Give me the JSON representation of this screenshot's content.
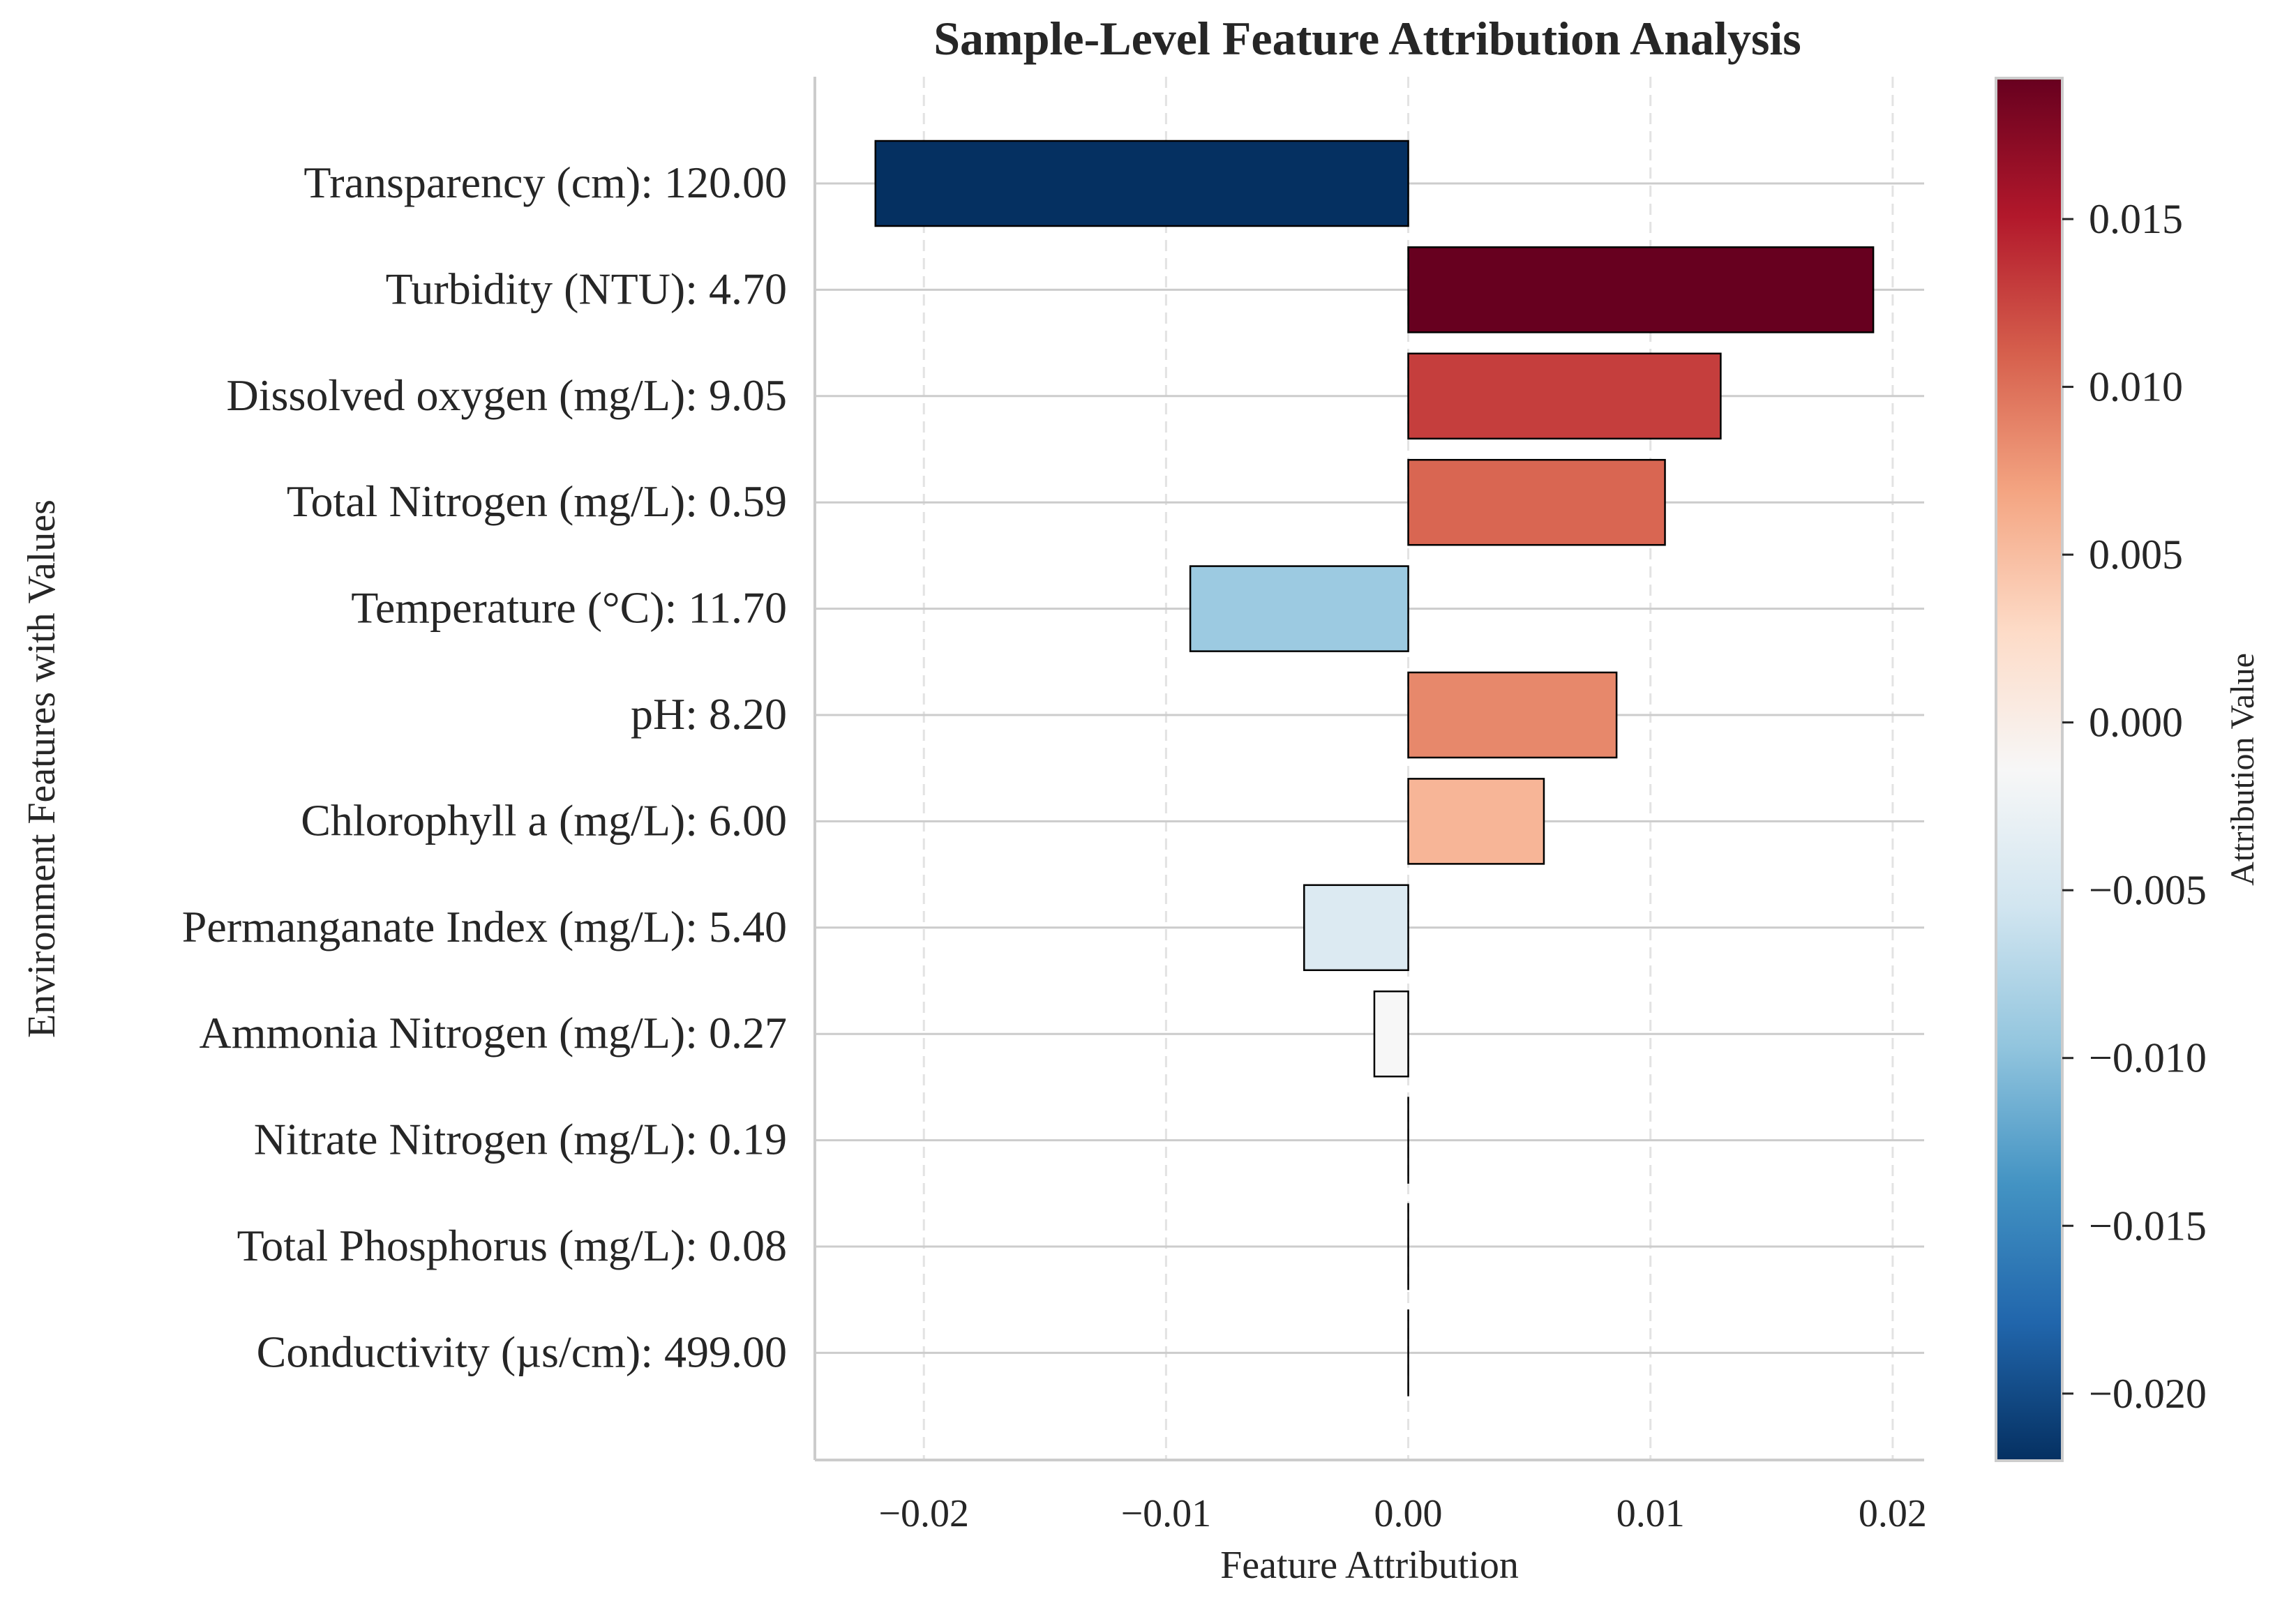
{
  "chart_data": {
    "type": "bar",
    "orientation": "horizontal",
    "title": "Sample-Level Feature Attribution Analysis",
    "xlabel": "Feature Attribution",
    "ylabel": "Environment Features with Values",
    "xlim": [
      -0.0245,
      0.0213
    ],
    "xticks": [
      -0.02,
      -0.01,
      0.0,
      0.01,
      0.02
    ],
    "xtick_labels": [
      "−0.02",
      "−0.01",
      "0.00",
      "0.01",
      "0.02"
    ],
    "categories": [
      "Transparency (cm): 120.00",
      "Turbidity (NTU): 4.70",
      "Dissolved oxygen (mg/L): 9.05",
      "Total Nitrogen (mg/L): 0.59",
      "Temperature (°C): 11.70",
      "pH: 8.20",
      "Chlorophyll a (mg/L): 6.00",
      "Permanganate Index (mg/L): 5.40",
      "Ammonia Nitrogen (mg/L): 0.27",
      "Nitrate Nitrogen (mg/L): 0.19",
      "Total Phosphorus (mg/L): 0.08",
      "Conductivity (µs/cm): 499.00"
    ],
    "values": [
      -0.022,
      0.0192,
      0.0129,
      0.0106,
      -0.009,
      0.0086,
      0.0056,
      -0.0043,
      -0.0014,
      0.0,
      0.0,
      0.0
    ],
    "grid": "on",
    "colormap": "RdBu_r",
    "colorbar": {
      "label": "Attribution Value",
      "range": [
        -0.022,
        0.0192
      ],
      "ticks": [
        0.015,
        0.01,
        0.005,
        0.0,
        -0.005,
        -0.01,
        -0.015,
        -0.02
      ],
      "tick_labels": [
        "0.015",
        "0.010",
        "0.005",
        "0.000",
        "−0.005",
        "−0.010",
        "−0.015",
        "−0.020"
      ]
    }
  }
}
